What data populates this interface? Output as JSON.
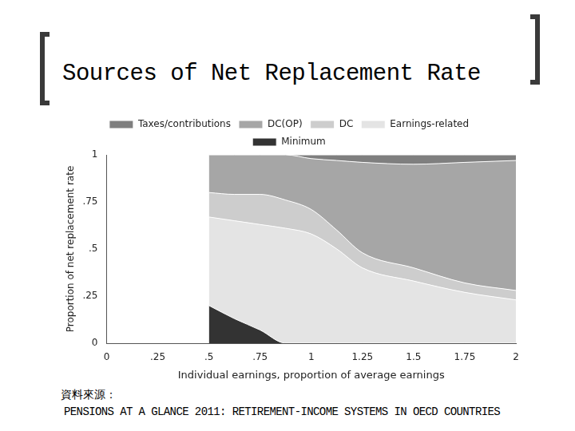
{
  "title": "Sources of Net Replacement Rate",
  "source_label": "資料來源：",
  "source": "PENSIONS AT A GLANCE 2011: RETIREMENT-INCOME SYSTEMS IN OECD COUNTRIES",
  "chart_data": {
    "type": "area",
    "stacked": true,
    "grid": false,
    "legend": "top",
    "x_label": "Individual earnings, proportion of average earnings",
    "y_label": "Proportion of net replacement rate",
    "x": [
      0.5,
      0.625,
      0.75,
      0.875,
      1,
      1.125,
      1.25,
      1.5,
      1.75,
      2
    ],
    "series": [
      {
        "name": "Minimum",
        "color": "#333333",
        "values": [
          0.2,
          0.13,
          0.07,
          0,
          0,
          0,
          0,
          0,
          0,
          0
        ]
      },
      {
        "name": "Earnings-related",
        "color": "#e4e4e4",
        "values": [
          0.47,
          0.52,
          0.56,
          0.61,
          0.58,
          0.5,
          0.4,
          0.33,
          0.27,
          0.23
        ]
      },
      {
        "name": "DC",
        "color": "#cdcdcd",
        "values": [
          0.13,
          0.14,
          0.16,
          0.15,
          0.13,
          0.1,
          0.08,
          0.07,
          0.05,
          0.05
        ]
      },
      {
        "name": "DC(OP)",
        "color": "#a6a6a6",
        "values": [
          0.2,
          0.21,
          0.21,
          0.24,
          0.27,
          0.37,
          0.48,
          0.55,
          0.64,
          0.69
        ]
      },
      {
        "name": "Taxes/contributions",
        "color": "#7f7f7f",
        "values": [
          0,
          0,
          0,
          0,
          0.02,
          0.03,
          0.04,
          0.05,
          0.04,
          0.03
        ]
      }
    ],
    "xlim": [
      0,
      2
    ],
    "xticks": [
      0,
      {
        "value": 0.25,
        "label": ".25"
      },
      {
        "value": 0.5,
        "label": ".5"
      },
      {
        "value": 0.75,
        "label": ".75"
      },
      1,
      {
        "value": 1.25,
        "label": "1.25"
      },
      {
        "value": 1.5,
        "label": "1.5"
      },
      {
        "value": 1.75,
        "label": "1.75"
      },
      2
    ],
    "ylim": [
      0,
      1
    ],
    "yticks": [
      0,
      {
        "value": 0.25,
        "label": ".25"
      },
      {
        "value": 0.5,
        "label": ".5"
      },
      {
        "value": 0.75,
        "label": ".75"
      },
      1
    ]
  }
}
